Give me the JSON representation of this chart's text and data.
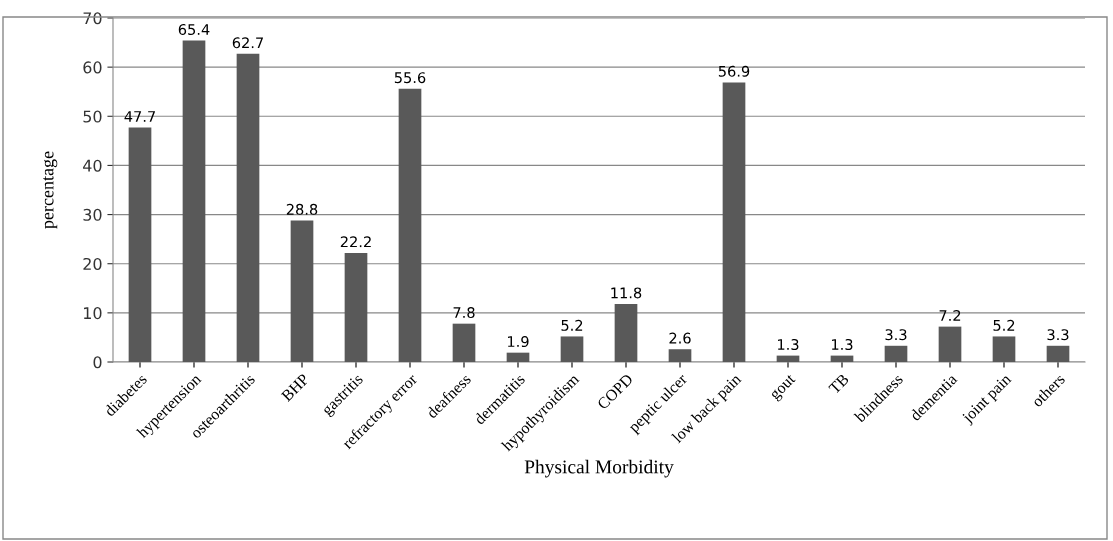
{
  "chart_data": {
    "type": "bar",
    "xlabel": "Physical Morbidity",
    "ylabel": "percentage",
    "categories": [
      "diabetes",
      "hypertension",
      "osteoarthritis",
      "BHP",
      "gastritis",
      "refractory error",
      "deafness",
      "dermatitis",
      "hypothyroidism",
      "COPD",
      "peptic ulcer",
      "low back pain",
      "gout",
      "TB",
      "blindness",
      "dementia",
      "joint pain",
      "others"
    ],
    "values": [
      47.7,
      65.4,
      62.7,
      28.8,
      22.2,
      55.6,
      7.8,
      1.9,
      5.2,
      11.8,
      2.6,
      56.9,
      1.3,
      1.3,
      3.3,
      7.2,
      5.2,
      3.3
    ],
    "color": "#595959",
    "ylim": [
      0,
      70
    ],
    "yticks": [
      0,
      10,
      20,
      30,
      40,
      50,
      60,
      70
    ],
    "grid": "y",
    "data_labels": true,
    "legend": false
  }
}
